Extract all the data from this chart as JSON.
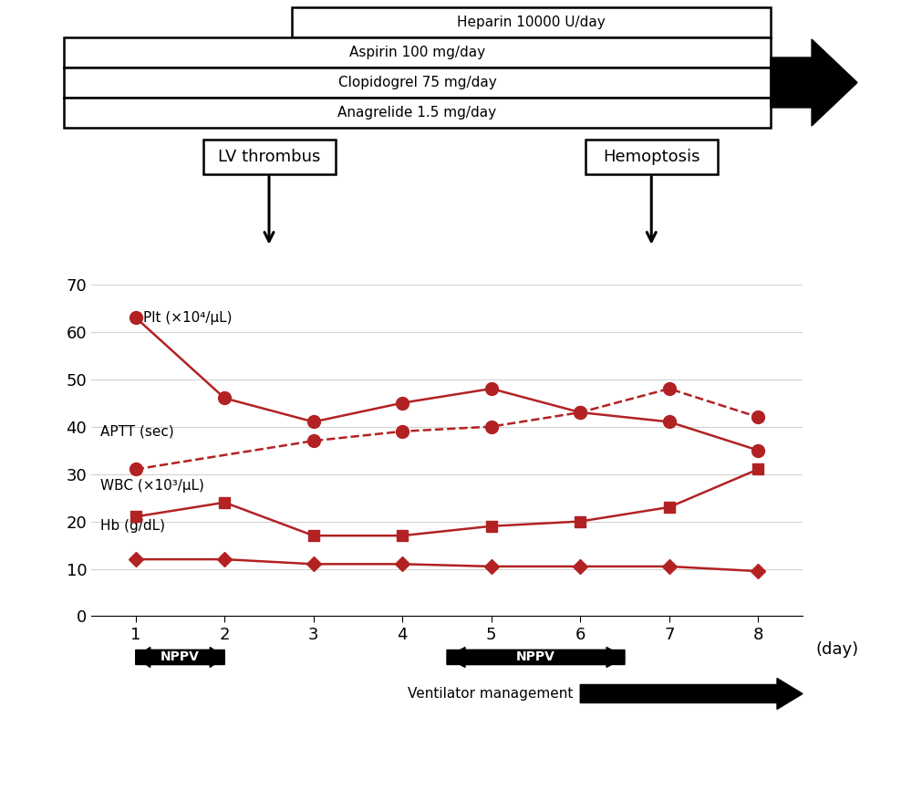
{
  "days": [
    1,
    2,
    3,
    4,
    5,
    6,
    7,
    8
  ],
  "plt_data": [
    63,
    46,
    41,
    45,
    48,
    43,
    41,
    35
  ],
  "aptt_data": [
    31,
    null,
    37,
    39,
    40,
    43,
    48,
    42
  ],
  "wbc_data": [
    21,
    24,
    17,
    17,
    19,
    20,
    23,
    31
  ],
  "hb_data": [
    12,
    12,
    11,
    11,
    10.5,
    10.5,
    10.5,
    9.5
  ],
  "color": "#b22222",
  "ylim": [
    0,
    75
  ],
  "yticks": [
    0,
    10,
    20,
    30,
    40,
    50,
    60,
    70
  ],
  "lv_thrombus_day": 2.5,
  "hemoptosis_day": 6.8,
  "labels": {
    "plt": "Plt (×10⁴/μL)",
    "aptt": "APTT (sec)",
    "wbc": "WBC (×10³/μL)",
    "hb": "Hb (g/dL)",
    "day": "(day)"
  }
}
